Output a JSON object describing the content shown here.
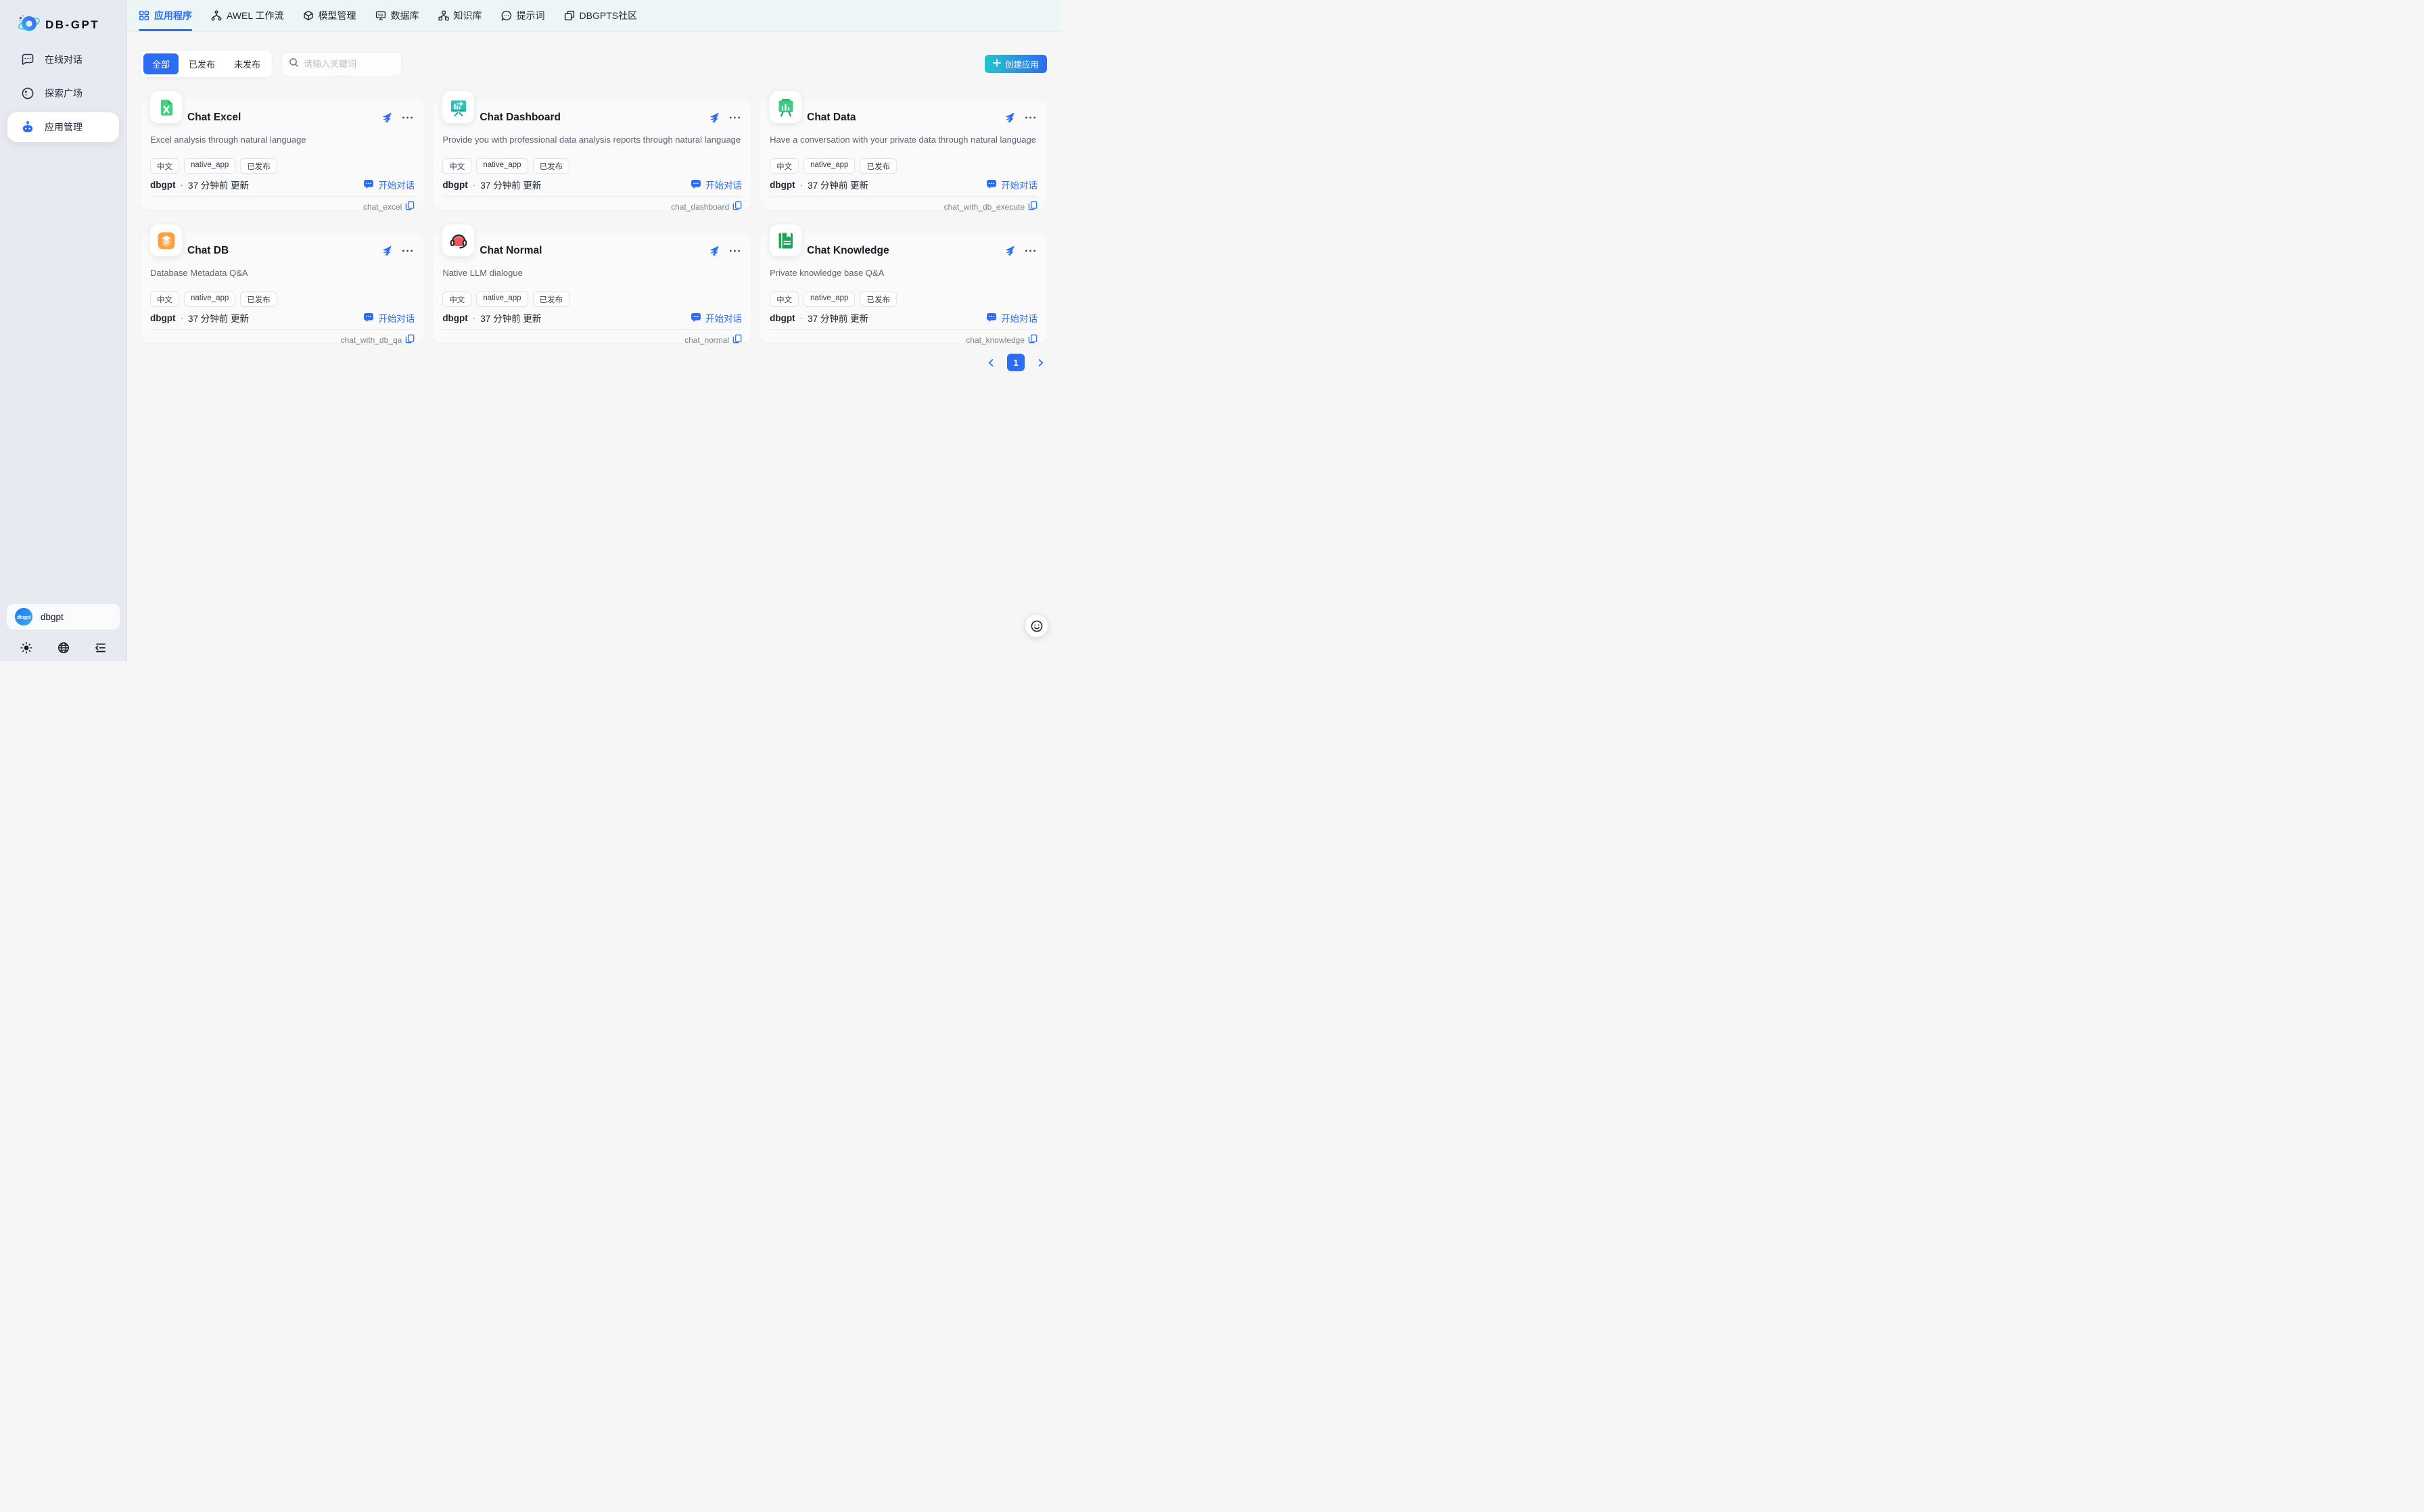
{
  "brand": {
    "name": "DB-GPT"
  },
  "sidebar": {
    "items": [
      {
        "label": "在线对话",
        "icon": "chat-bubble-icon",
        "active": false
      },
      {
        "label": "探索广场",
        "icon": "discover-icon",
        "active": false
      },
      {
        "label": "应用管理",
        "icon": "robot-icon",
        "active": true
      }
    ],
    "user": {
      "name": "dbgpt",
      "avatar_label": "dbgpt"
    }
  },
  "topnav": {
    "tabs": [
      {
        "label": "应用程序",
        "icon": "grid-icon",
        "active": true
      },
      {
        "label": "AWEL 工作流",
        "icon": "workflow-icon",
        "active": false
      },
      {
        "label": "模型管理",
        "icon": "model-icon",
        "active": false
      },
      {
        "label": "数据库",
        "icon": "database-icon",
        "active": false
      },
      {
        "label": "知识库",
        "icon": "knowledge-icon",
        "active": false
      },
      {
        "label": "提示词",
        "icon": "prompt-icon",
        "active": false
      },
      {
        "label": "DBGPTS社区",
        "icon": "community-icon",
        "active": false
      }
    ]
  },
  "filters": {
    "tabs": [
      {
        "label": "全部",
        "active": true
      },
      {
        "label": "已发布",
        "active": false
      },
      {
        "label": "未发布",
        "active": false
      }
    ]
  },
  "search": {
    "placeholder": "请输入关键词"
  },
  "create_button": {
    "label": "创建应用"
  },
  "ui": {
    "owner_separator": "·"
  },
  "cards": [
    {
      "title": "Chat Excel",
      "description": "Excel analysis through natural language",
      "tags": [
        "中文",
        "native_app",
        "已发布"
      ],
      "owner": "dbgpt",
      "updated_text": "37 分钟前 更新",
      "chat_label": "开始对话",
      "code": "chat_excel",
      "icon": "excel-file"
    },
    {
      "title": "Chat Dashboard",
      "description": "Provide you with professional data analysis reports through natural language",
      "tags": [
        "中文",
        "native_app",
        "已发布"
      ],
      "owner": "dbgpt",
      "updated_text": "37 分钟前 更新",
      "chat_label": "开始对话",
      "code": "chat_dashboard",
      "icon": "dashboard-board"
    },
    {
      "title": "Chat Data",
      "description": "Have a conversation with your private data through natural language",
      "tags": [
        "中文",
        "native_app",
        "已发布"
      ],
      "owner": "dbgpt",
      "updated_text": "37 分钟前 更新",
      "chat_label": "开始对话",
      "code": "chat_with_db_execute",
      "icon": "data-board"
    },
    {
      "title": "Chat DB",
      "description": "Database Metadata Q&A",
      "tags": [
        "中文",
        "native_app",
        "已发布"
      ],
      "owner": "dbgpt",
      "updated_text": "37 分钟前 更新",
      "chat_label": "开始对话",
      "code": "chat_with_db_qa",
      "icon": "db-layers"
    },
    {
      "title": "Chat Normal",
      "description": "Native LLM dialogue",
      "tags": [
        "中文",
        "native_app",
        "已发布"
      ],
      "owner": "dbgpt",
      "updated_text": "37 分钟前 更新",
      "chat_label": "开始对话",
      "code": "chat_normal",
      "icon": "normal-headset"
    },
    {
      "title": "Chat Knowledge",
      "description": "Private knowledge base Q&A",
      "tags": [
        "中文",
        "native_app",
        "已发布"
      ],
      "owner": "dbgpt",
      "updated_text": "37 分钟前 更新",
      "chat_label": "开始对话",
      "code": "chat_knowledge",
      "icon": "knowledge-book"
    }
  ],
  "pagination": {
    "current": "1"
  },
  "colors": {
    "accent": "#2b6df5",
    "create_gradient": [
      "#25c4ce",
      "#2b6df5"
    ],
    "sidebar_bg": "#e8eaf2",
    "topbar_bg": "#edf6f7",
    "excel_green": "#43d17e",
    "dashboard_teal": "#2ec3b9",
    "data_green": "#3ecb82",
    "db_orange": "#f9a13f",
    "normal_red": "#f2545c",
    "knowledge_green": "#1ea35c"
  }
}
